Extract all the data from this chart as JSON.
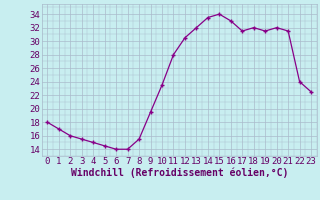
{
  "x": [
    0,
    1,
    2,
    3,
    4,
    5,
    6,
    7,
    8,
    9,
    10,
    11,
    12,
    13,
    14,
    15,
    16,
    17,
    18,
    19,
    20,
    21,
    22,
    23
  ],
  "y": [
    18,
    17,
    16,
    15.5,
    15,
    14.5,
    14,
    14,
    15.5,
    19.5,
    23.5,
    28,
    30.5,
    32,
    33.5,
    34,
    33,
    31.5,
    32,
    31.5,
    32,
    31.5,
    24,
    22.5
  ],
  "line_color": "#880088",
  "marker": "+",
  "marker_color": "#880088",
  "bg_color": "#c8eef0",
  "grid_color": "#aabbcc",
  "xlabel": "Windchill (Refroidissement éolien,°C)",
  "xlabel_fontsize": 7,
  "ylabel_ticks": [
    14,
    16,
    18,
    20,
    22,
    24,
    26,
    28,
    30,
    32,
    34
  ],
  "xtick_labels": [
    "0",
    "1",
    "2",
    "3",
    "4",
    "5",
    "6",
    "7",
    "8",
    "9",
    "10",
    "11",
    "12",
    "13",
    "14",
    "15",
    "16",
    "17",
    "18",
    "19",
    "20",
    "21",
    "22",
    "23"
  ],
  "ylim": [
    13.0,
    35.5
  ],
  "xlim": [
    -0.5,
    23.5
  ],
  "tick_fontsize": 6.5
}
